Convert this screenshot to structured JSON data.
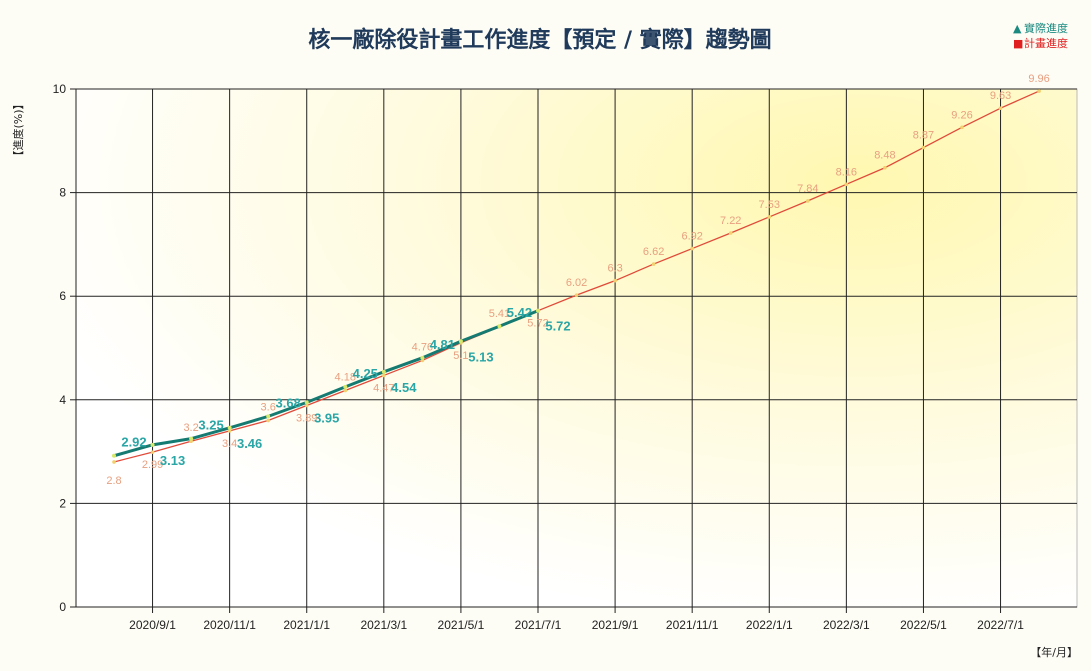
{
  "chart_data": {
    "type": "line",
    "title": "核一廠除役計畫工作進度【預定 / 實際】趨勢圖",
    "ylabel": "【進度(%)】",
    "xlabel": "【年/月】",
    "ylim": [
      0,
      10
    ],
    "yticks": [
      0,
      2,
      4,
      6,
      8,
      10
    ],
    "xticks": [
      "2020/9/1",
      "2020/11/1",
      "2021/1/1",
      "2021/3/1",
      "2021/5/1",
      "2021/7/1",
      "2021/9/1",
      "2021/11/1",
      "2022/1/1",
      "2022/3/1",
      "2022/5/1",
      "2022/7/1"
    ],
    "grid": true,
    "legend_position": "top-right",
    "series": [
      {
        "name": "實際進度",
        "marker": "▲",
        "color": "#157a72",
        "label_color": "#2aa6a6",
        "points": [
          {
            "x": "2020/8/1",
            "y": 2.92
          },
          {
            "x": "2020/9/1",
            "y": 3.13
          },
          {
            "x": "2020/10/1",
            "y": 3.25
          },
          {
            "x": "2020/11/1",
            "y": 3.46
          },
          {
            "x": "2020/12/1",
            "y": 3.68
          },
          {
            "x": "2021/1/1",
            "y": 3.95
          },
          {
            "x": "2021/2/1",
            "y": 4.25
          },
          {
            "x": "2021/3/1",
            "y": 4.54
          },
          {
            "x": "2021/4/1",
            "y": 4.81
          },
          {
            "x": "2021/5/1",
            "y": 5.13
          },
          {
            "x": "2021/6/1",
            "y": 5.42
          },
          {
            "x": "2021/7/1",
            "y": 5.72
          }
        ]
      },
      {
        "name": "計畫進度",
        "marker": "■",
        "color": "#e04a3a",
        "label_color": "#e8a080",
        "points": [
          {
            "x": "2020/8/1",
            "y": 2.8
          },
          {
            "x": "2020/9/1",
            "y": 2.99
          },
          {
            "x": "2020/10/1",
            "y": 3.2
          },
          {
            "x": "2020/11/1",
            "y": 3.4
          },
          {
            "x": "2020/12/1",
            "y": 3.6
          },
          {
            "x": "2021/1/1",
            "y": 3.89
          },
          {
            "x": "2021/2/1",
            "y": 4.18
          },
          {
            "x": "2021/3/1",
            "y": 4.47
          },
          {
            "x": "2021/4/1",
            "y": 4.76
          },
          {
            "x": "2021/5/1",
            "y": 5.1
          },
          {
            "x": "2021/6/1",
            "y": 5.41
          },
          {
            "x": "2021/7/1",
            "y": 5.72
          },
          {
            "x": "2021/8/1",
            "y": 6.02
          },
          {
            "x": "2021/9/1",
            "y": 6.3
          },
          {
            "x": "2021/10/1",
            "y": 6.62
          },
          {
            "x": "2021/11/1",
            "y": 6.92
          },
          {
            "x": "2021/12/1",
            "y": 7.22
          },
          {
            "x": "2022/1/1",
            "y": 7.53
          },
          {
            "x": "2022/2/1",
            "y": 7.84
          },
          {
            "x": "2022/3/1",
            "y": 8.16
          },
          {
            "x": "2022/4/1",
            "y": 8.48
          },
          {
            "x": "2022/5/1",
            "y": 8.87
          },
          {
            "x": "2022/6/1",
            "y": 9.26
          },
          {
            "x": "2022/7/1",
            "y": 9.63
          },
          {
            "x": "2022/8/1",
            "y": 9.96
          }
        ]
      }
    ]
  }
}
